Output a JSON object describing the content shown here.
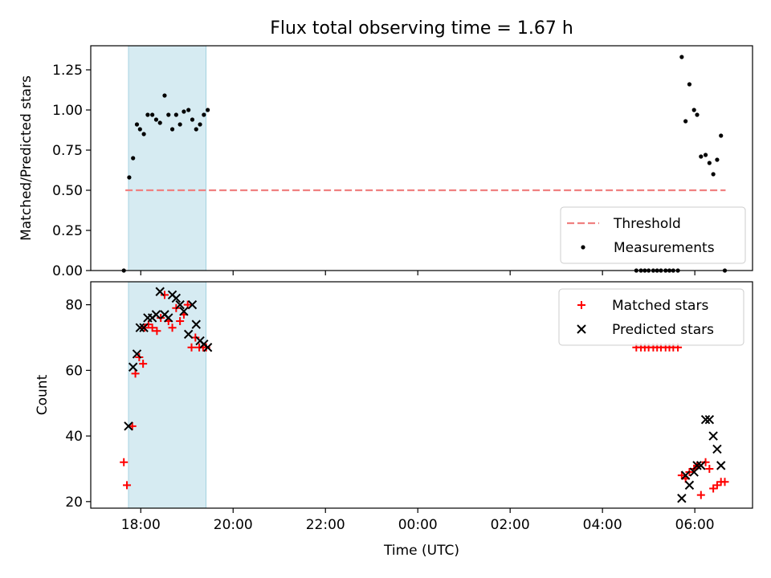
{
  "title": "Flux total observing time = 1.67 h",
  "chart_data": [
    {
      "type": "scatter",
      "ylabel": "Matched/Predicted stars",
      "ylim": [
        0,
        1.4
      ],
      "yticks": [
        0.0,
        0.25,
        0.5,
        0.75,
        1.0,
        1.25
      ],
      "ytick_labels": [
        "0.00",
        "0.25",
        "0.50",
        "0.75",
        "1.00",
        "1.25"
      ],
      "shade_x": [
        "17:44",
        "19:25"
      ],
      "threshold": {
        "name": "Threshold",
        "value": 0.5,
        "x": [
          "17:40",
          "06:40"
        ],
        "color": "#f08080"
      },
      "series": [
        {
          "name": "Measurements",
          "color": "#000000",
          "points": [
            [
              "17:38",
              0.0
            ],
            [
              "17:45",
              0.58
            ],
            [
              "17:50",
              0.7
            ],
            [
              "17:55",
              0.91
            ],
            [
              "17:59",
              0.88
            ],
            [
              "18:04",
              0.85
            ],
            [
              "18:09",
              0.97
            ],
            [
              "18:15",
              0.97
            ],
            [
              "18:20",
              0.94
            ],
            [
              "18:25",
              0.92
            ],
            [
              "18:31",
              1.09
            ],
            [
              "18:36",
              0.97
            ],
            [
              "18:41",
              0.88
            ],
            [
              "18:46",
              0.97
            ],
            [
              "18:51",
              0.91
            ],
            [
              "18:56",
              0.99
            ],
            [
              "19:02",
              1.0
            ],
            [
              "19:07",
              0.94
            ],
            [
              "19:12",
              0.88
            ],
            [
              "19:17",
              0.91
            ],
            [
              "19:22",
              0.97
            ],
            [
              "19:27",
              1.0
            ],
            [
              "04:44",
              0.0
            ],
            [
              "04:50",
              0.0
            ],
            [
              "04:55",
              0.0
            ],
            [
              "05:00",
              0.0
            ],
            [
              "05:06",
              0.0
            ],
            [
              "05:11",
              0.0
            ],
            [
              "05:16",
              0.0
            ],
            [
              "05:22",
              0.0
            ],
            [
              "05:27",
              0.0
            ],
            [
              "05:32",
              0.0
            ],
            [
              "05:38",
              0.0
            ],
            [
              "05:43",
              1.33
            ],
            [
              "05:48",
              0.93
            ],
            [
              "05:53",
              1.16
            ],
            [
              "05:59",
              1.0
            ],
            [
              "06:03",
              0.97
            ],
            [
              "06:08",
              0.71
            ],
            [
              "06:14",
              0.72
            ],
            [
              "06:19",
              0.67
            ],
            [
              "06:24",
              0.6
            ],
            [
              "06:29",
              0.69
            ],
            [
              "06:34",
              0.84
            ],
            [
              "06:39",
              0.0
            ]
          ]
        }
      ]
    },
    {
      "type": "scatter",
      "xlabel": "Time (UTC)",
      "ylabel": "Count",
      "ylim": [
        18,
        87
      ],
      "yticks": [
        20,
        40,
        60,
        80
      ],
      "ytick_labels": [
        "20",
        "40",
        "60",
        "80"
      ],
      "x_range": [
        "16:55",
        "07:15"
      ],
      "xticks": [
        "18:00",
        "20:00",
        "22:00",
        "00:00",
        "02:00",
        "04:00",
        "06:00"
      ],
      "shade_x": [
        "17:44",
        "19:25"
      ],
      "series": [
        {
          "name": "Matched stars",
          "marker": "plus",
          "color": "#ff0000",
          "points": [
            [
              "17:38",
              32
            ],
            [
              "17:42",
              25
            ],
            [
              "17:49",
              43
            ],
            [
              "17:53",
              59
            ],
            [
              "17:58",
              64
            ],
            [
              "18:03",
              62
            ],
            [
              "18:05",
              73
            ],
            [
              "18:10",
              74
            ],
            [
              "18:15",
              73
            ],
            [
              "18:21",
              72
            ],
            [
              "18:26",
              76
            ],
            [
              "18:31",
              83
            ],
            [
              "18:36",
              75
            ],
            [
              "18:41",
              73
            ],
            [
              "18:46",
              79
            ],
            [
              "18:51",
              75
            ],
            [
              "18:56",
              77
            ],
            [
              "19:01",
              80
            ],
            [
              "19:06",
              67
            ],
            [
              "19:11",
              70
            ],
            [
              "19:16",
              67
            ],
            [
              "19:21",
              67
            ],
            [
              "19:25",
              67
            ],
            [
              "04:44",
              67
            ],
            [
              "04:50",
              67
            ],
            [
              "04:55",
              67
            ],
            [
              "05:00",
              67
            ],
            [
              "05:06",
              67
            ],
            [
              "05:11",
              67
            ],
            [
              "05:16",
              67
            ],
            [
              "05:22",
              67
            ],
            [
              "05:27",
              67
            ],
            [
              "05:32",
              67
            ],
            [
              "05:38",
              67
            ],
            [
              "05:43",
              28
            ],
            [
              "05:48",
              27
            ],
            [
              "05:53",
              29
            ],
            [
              "05:59",
              30
            ],
            [
              "06:03",
              31
            ],
            [
              "06:08",
              22
            ],
            [
              "06:14",
              32
            ],
            [
              "06:19",
              30
            ],
            [
              "06:24",
              24
            ],
            [
              "06:29",
              25
            ],
            [
              "06:34",
              26
            ],
            [
              "06:39",
              26
            ]
          ]
        },
        {
          "name": "Predicted stars",
          "marker": "x",
          "color": "#000000",
          "points": [
            [
              "17:44",
              43
            ],
            [
              "17:50",
              61
            ],
            [
              "17:55",
              65
            ],
            [
              "17:59",
              73
            ],
            [
              "18:04",
              73
            ],
            [
              "18:09",
              76
            ],
            [
              "18:15",
              76
            ],
            [
              "18:20",
              77
            ],
            [
              "18:25",
              84
            ],
            [
              "18:31",
              77
            ],
            [
              "18:36",
              76
            ],
            [
              "18:41",
              83
            ],
            [
              "18:46",
              82
            ],
            [
              "18:51",
              80
            ],
            [
              "18:56",
              78
            ],
            [
              "19:02",
              71
            ],
            [
              "19:07",
              80
            ],
            [
              "19:12",
              74
            ],
            [
              "19:17",
              69
            ],
            [
              "19:22",
              68
            ],
            [
              "19:27",
              67
            ],
            [
              "05:43",
              21
            ],
            [
              "05:48",
              28
            ],
            [
              "05:53",
              25
            ],
            [
              "05:59",
              29
            ],
            [
              "06:03",
              31
            ],
            [
              "06:08",
              31
            ],
            [
              "06:14",
              45
            ],
            [
              "06:19",
              45
            ],
            [
              "06:24",
              40
            ],
            [
              "06:29",
              36
            ],
            [
              "06:34",
              31
            ]
          ]
        }
      ]
    }
  ]
}
